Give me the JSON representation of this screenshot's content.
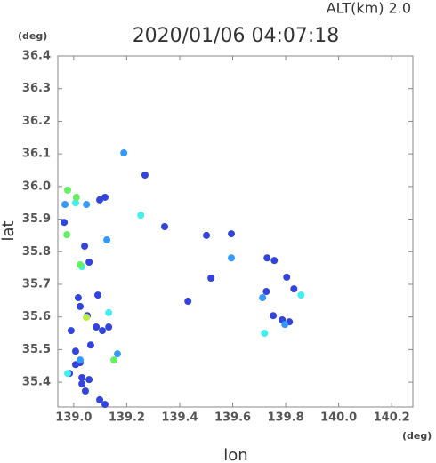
{
  "chart_data": {
    "type": "scatter",
    "title": "2020/01/06 04:07:18",
    "subtitle": "ALT(km) 2.0",
    "x_label": "lon",
    "y_label": "lat",
    "x_unit": "(deg)",
    "y_unit": "(deg)",
    "xlim": [
      138.94,
      140.28
    ],
    "ylim": [
      35.324,
      36.4
    ],
    "xticks": [
      {
        "value": 139.0,
        "label": "139.0"
      },
      139.2,
      139.4,
      139.6,
      139.8,
      {
        "value": 140.0,
        "label": "140.0"
      },
      140.2
    ],
    "yticks": [
      35.4,
      35.5,
      35.6,
      35.7,
      35.8,
      35.9,
      {
        "value": 36.0,
        "label": "36.0"
      },
      36.1,
      36.2,
      36.3,
      36.4
    ],
    "series": [
      {
        "color": "#3344dd",
        "x": [
          139.031,
          139.007,
          139.031,
          138.984,
          139.044,
          138.964,
          139.017,
          139.024,
          139.051,
          139.091,
          139.085,
          139.108,
          139.132,
          139.041,
          139.098,
          139.118,
          139.269,
          139.343,
          139.501,
          139.431,
          139.518,
          139.595,
          139.73,
          139.757,
          139.804,
          139.727,
          139.814,
          139.753,
          139.787,
          139.831,
          139.058,
          139.007,
          139.024,
          139.098,
          139.118,
          139.064,
          139.058,
          138.99
        ],
        "y": [
          35.414,
          35.454,
          35.395,
          35.427,
          35.373,
          35.89,
          35.659,
          35.632,
          35.604,
          35.667,
          35.569,
          35.558,
          35.569,
          35.817,
          35.959,
          35.967,
          36.035,
          35.877,
          35.85,
          35.648,
          35.719,
          35.855,
          35.781,
          35.773,
          35.722,
          35.678,
          35.585,
          35.604,
          35.591,
          35.686,
          35.768,
          35.495,
          35.46,
          35.346,
          35.332,
          35.514,
          35.408,
          35.558
        ]
      },
      {
        "color": "#3399ff",
        "x": [
          139.189,
          139.048,
          139.125,
          139.595,
          139.713,
          139.797,
          139.165,
          139.024,
          138.967
        ],
        "y": [
          36.103,
          35.945,
          35.836,
          35.781,
          35.659,
          35.577,
          35.487,
          35.468,
          35.945
        ]
      },
      {
        "color": "#44eeee",
        "x": [
          138.977,
          139.858,
          139.72,
          139.132,
          139.031,
          139.253,
          139.007
        ],
        "y": [
          35.427,
          35.667,
          35.55,
          35.613,
          35.754,
          35.912,
          35.95
        ]
      },
      {
        "color": "#66ee66",
        "x": [
          138.977,
          139.01,
          138.974,
          139.024,
          139.152
        ],
        "y": [
          35.989,
          35.967,
          35.852,
          35.76,
          35.468
        ]
      },
      {
        "color": "#bbee44",
        "x": [
          139.048
        ],
        "y": [
          35.599
        ]
      }
    ]
  }
}
